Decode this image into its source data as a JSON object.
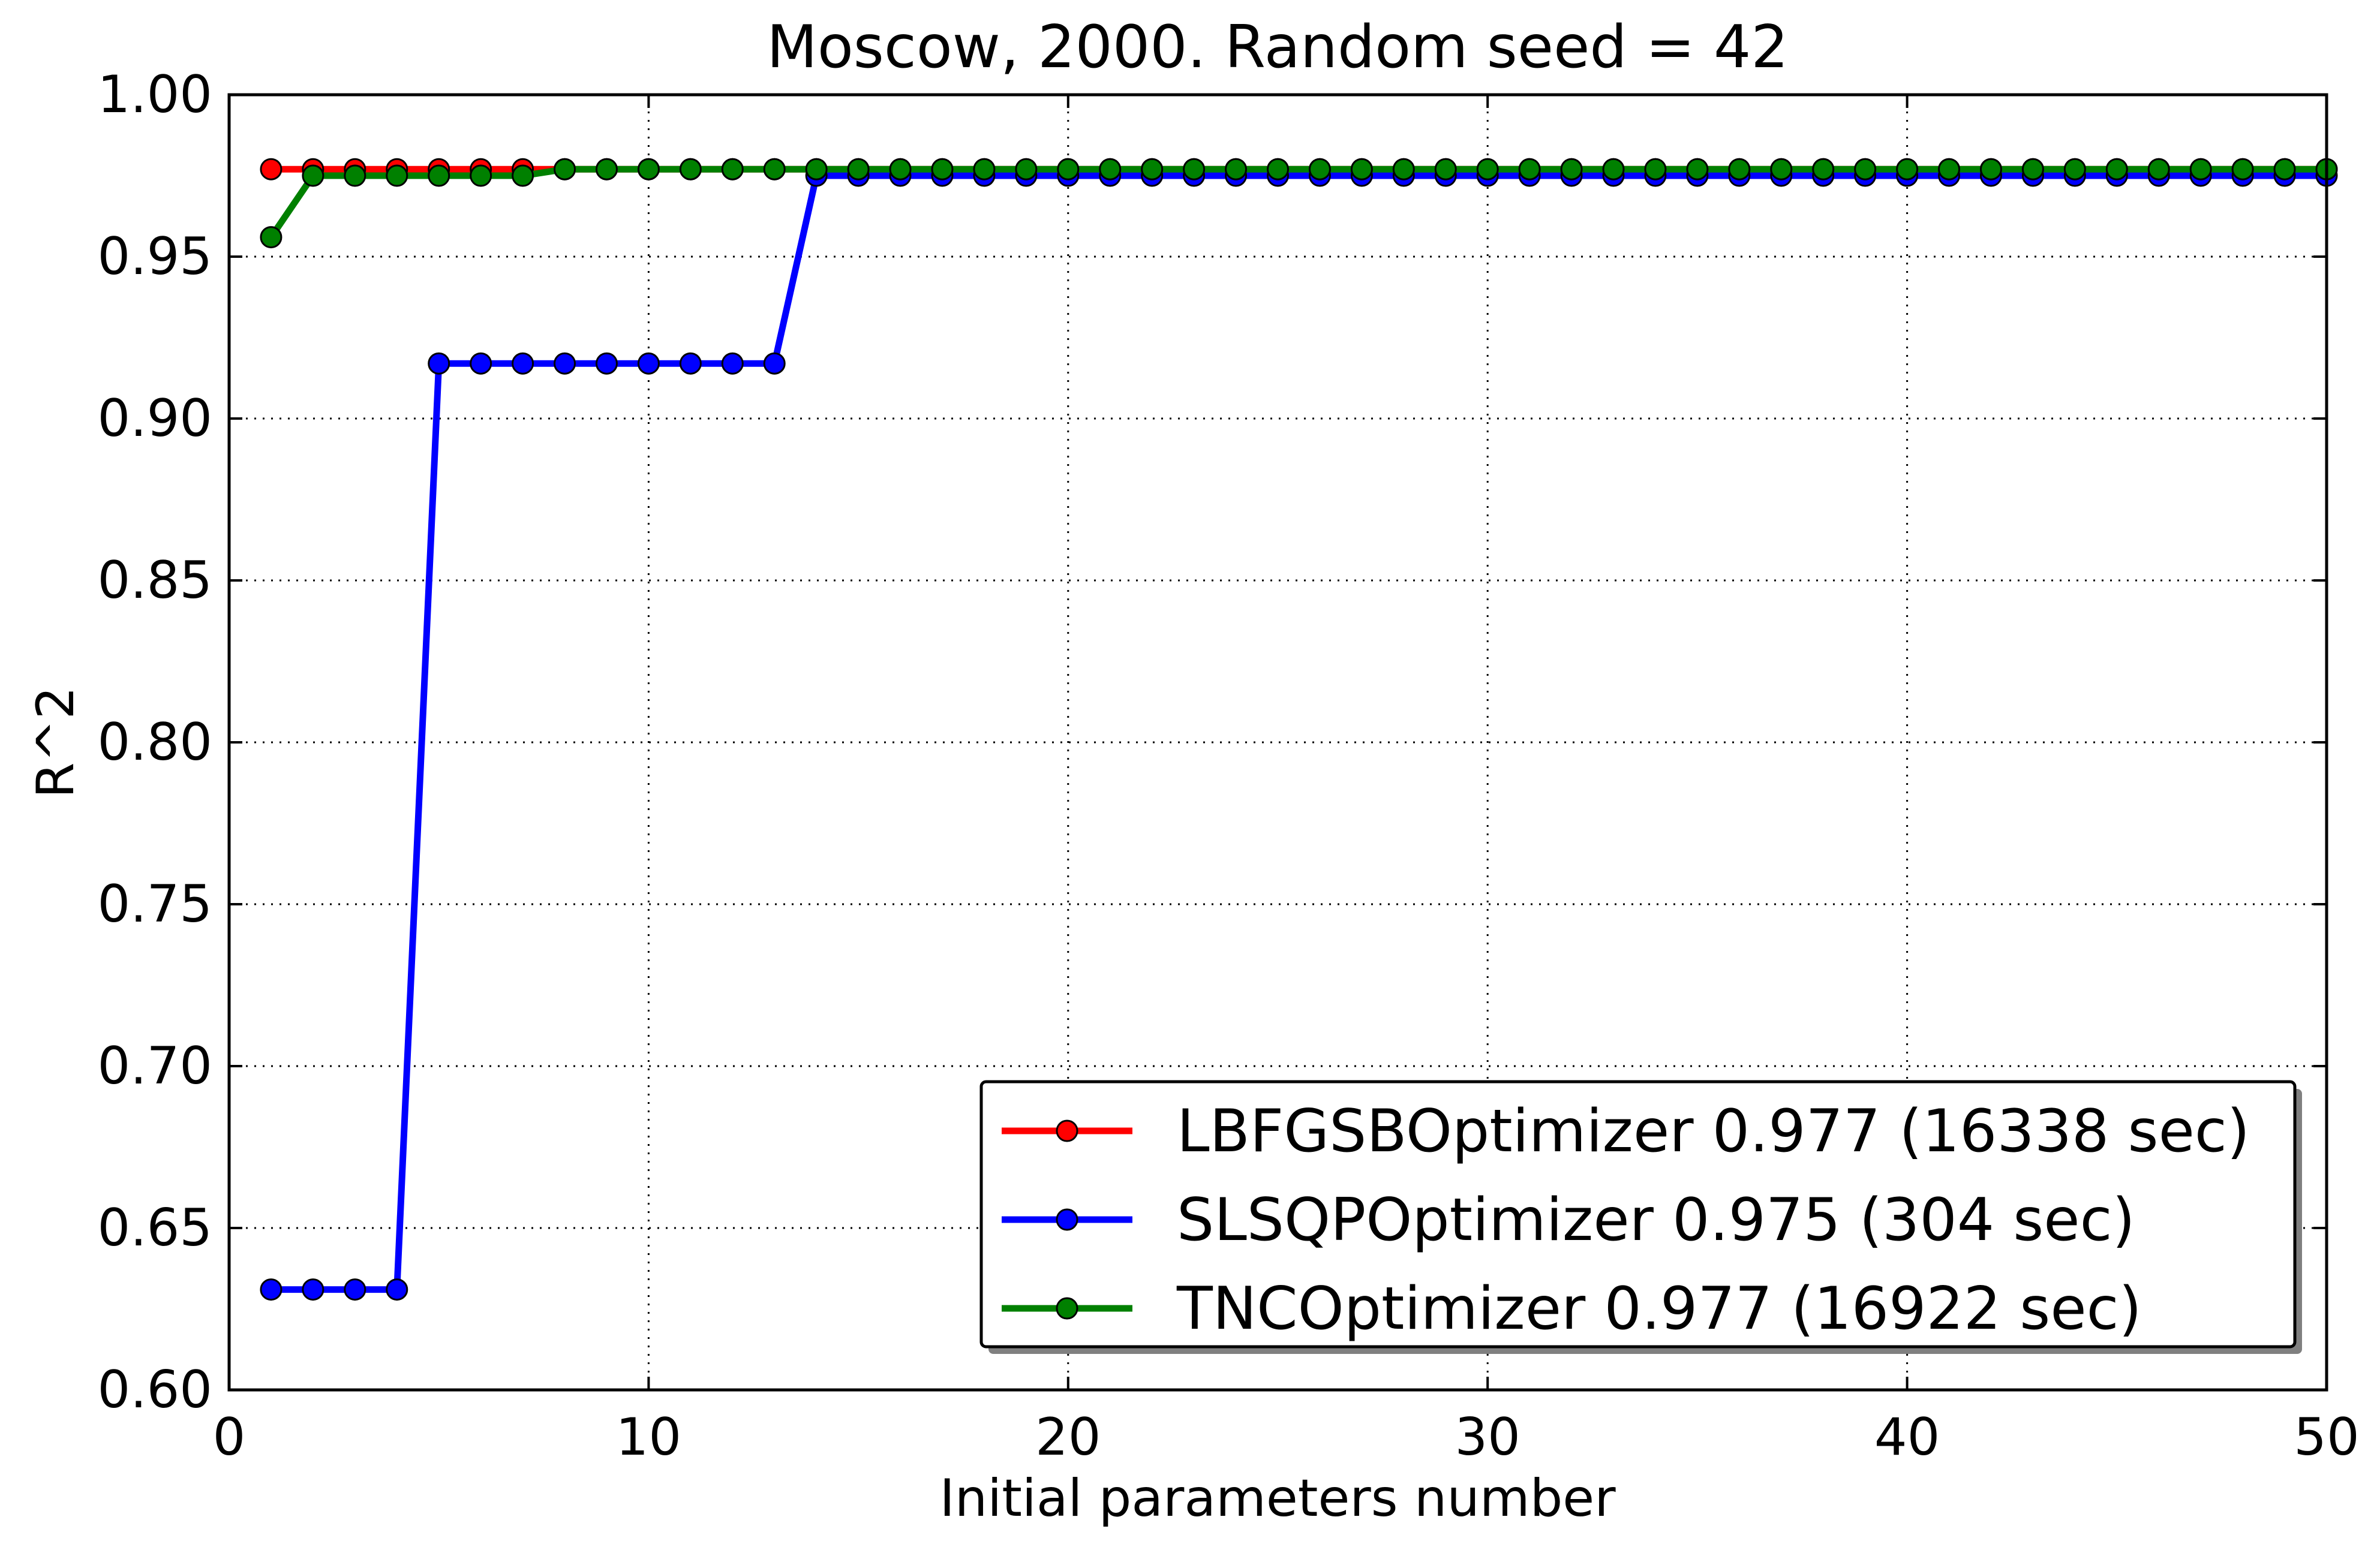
{
  "chart_data": {
    "type": "line",
    "title": "Moscow, 2000. Random seed = 42",
    "xlabel": "Initial parameters number",
    "ylabel": "R^2",
    "xlim": [
      0,
      50
    ],
    "ylim": [
      0.6,
      1.0
    ],
    "xticks": [
      "0",
      "10",
      "20",
      "30",
      "40",
      "50"
    ],
    "yticks": [
      "0.60",
      "0.65",
      "0.70",
      "0.75",
      "0.80",
      "0.85",
      "0.90",
      "0.95",
      "1.00"
    ],
    "grid": true,
    "legend_position": "lower-right",
    "x": [
      1,
      2,
      3,
      4,
      5,
      6,
      7,
      8,
      9,
      10,
      11,
      12,
      13,
      14,
      15,
      16,
      17,
      18,
      19,
      20,
      21,
      22,
      23,
      24,
      25,
      26,
      27,
      28,
      29,
      30,
      31,
      32,
      33,
      34,
      35,
      36,
      37,
      38,
      39,
      40,
      41,
      42,
      43,
      44,
      45,
      46,
      47,
      48,
      49,
      50
    ],
    "series": [
      {
        "name": "LBFGSBOptimizer 0.977 (16338 sec)",
        "color": "#ff0000",
        "values": [
          0.977,
          0.977,
          0.977,
          0.977,
          0.977,
          0.977,
          0.977,
          0.977,
          0.977,
          0.977,
          0.977,
          0.977,
          0.977,
          0.977,
          0.977,
          0.977,
          0.977,
          0.977,
          0.977,
          0.977,
          0.977,
          0.977,
          0.977,
          0.977,
          0.977,
          0.977,
          0.977,
          0.977,
          0.977,
          0.977,
          0.977,
          0.977,
          0.977,
          0.977,
          0.977,
          0.977,
          0.977,
          0.977,
          0.977,
          0.977,
          0.977,
          0.977,
          0.977,
          0.977,
          0.977,
          0.977,
          0.977,
          0.977,
          0.977,
          0.977
        ]
      },
      {
        "name": "SLSQPOptimizer 0.975 (304 sec)",
        "color": "#0000ff",
        "values": [
          0.631,
          0.631,
          0.631,
          0.631,
          0.917,
          0.917,
          0.917,
          0.917,
          0.917,
          0.917,
          0.917,
          0.917,
          0.917,
          0.975,
          0.975,
          0.975,
          0.975,
          0.975,
          0.975,
          0.975,
          0.975,
          0.975,
          0.975,
          0.975,
          0.975,
          0.975,
          0.975,
          0.975,
          0.975,
          0.975,
          0.975,
          0.975,
          0.975,
          0.975,
          0.975,
          0.975,
          0.975,
          0.975,
          0.975,
          0.975,
          0.975,
          0.975,
          0.975,
          0.975,
          0.975,
          0.975,
          0.975,
          0.975,
          0.975,
          0.975
        ]
      },
      {
        "name": "TNCOptimizer 0.977 (16922 sec)",
        "color": "#008000",
        "values": [
          0.956,
          0.975,
          0.975,
          0.975,
          0.975,
          0.975,
          0.975,
          0.977,
          0.977,
          0.977,
          0.977,
          0.977,
          0.977,
          0.977,
          0.977,
          0.977,
          0.977,
          0.977,
          0.977,
          0.977,
          0.977,
          0.977,
          0.977,
          0.977,
          0.977,
          0.977,
          0.977,
          0.977,
          0.977,
          0.977,
          0.977,
          0.977,
          0.977,
          0.977,
          0.977,
          0.977,
          0.977,
          0.977,
          0.977,
          0.977,
          0.977,
          0.977,
          0.977,
          0.977,
          0.977,
          0.977,
          0.977,
          0.977,
          0.977,
          0.977
        ]
      }
    ]
  }
}
